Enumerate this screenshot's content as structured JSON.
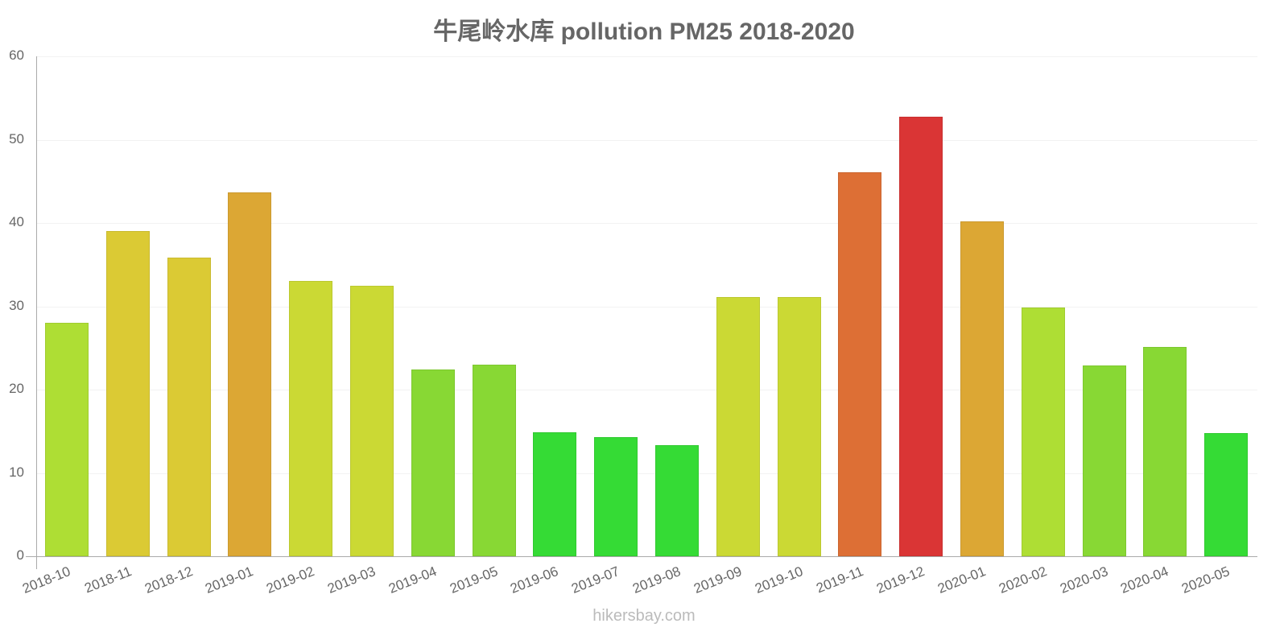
{
  "title": "牛尾岭水库 pollution PM25 2018-2020",
  "footer": "hikersbay.com",
  "chart_data": {
    "type": "bar",
    "title": "牛尾岭水库 pollution PM25 2018-2020",
    "xlabel": "",
    "ylabel": "",
    "ylim": [
      0,
      60
    ],
    "yticks": [
      0,
      10,
      20,
      30,
      40,
      50,
      60
    ],
    "grid": true,
    "legend": null,
    "categories": [
      "2018-10",
      "2018-11",
      "2018-12",
      "2019-01",
      "2019-02",
      "2019-03",
      "2019-04",
      "2019-05",
      "2019-06",
      "2019-07",
      "2019-08",
      "2019-09",
      "2019-10",
      "2019-11",
      "2019-12",
      "2020-01",
      "2020-02",
      "2020-03",
      "2020-04",
      "2020-05"
    ],
    "values": [
      28.0,
      39.0,
      35.8,
      43.7,
      33.0,
      32.5,
      22.4,
      23.0,
      14.9,
      14.3,
      13.3,
      31.1,
      31.1,
      46.1,
      52.8,
      40.2,
      29.9,
      22.9,
      25.1,
      14.8
    ],
    "colors": [
      "#aede34",
      "#dbca34",
      "#dbca34",
      "#dca734",
      "#cbd934",
      "#cbd934",
      "#88d834",
      "#88d834",
      "#35db35",
      "#35db35",
      "#35db35",
      "#cbd934",
      "#cbd934",
      "#dd6f35",
      "#da3535",
      "#dca734",
      "#aede34",
      "#88d834",
      "#88d834",
      "#35db35"
    ]
  }
}
